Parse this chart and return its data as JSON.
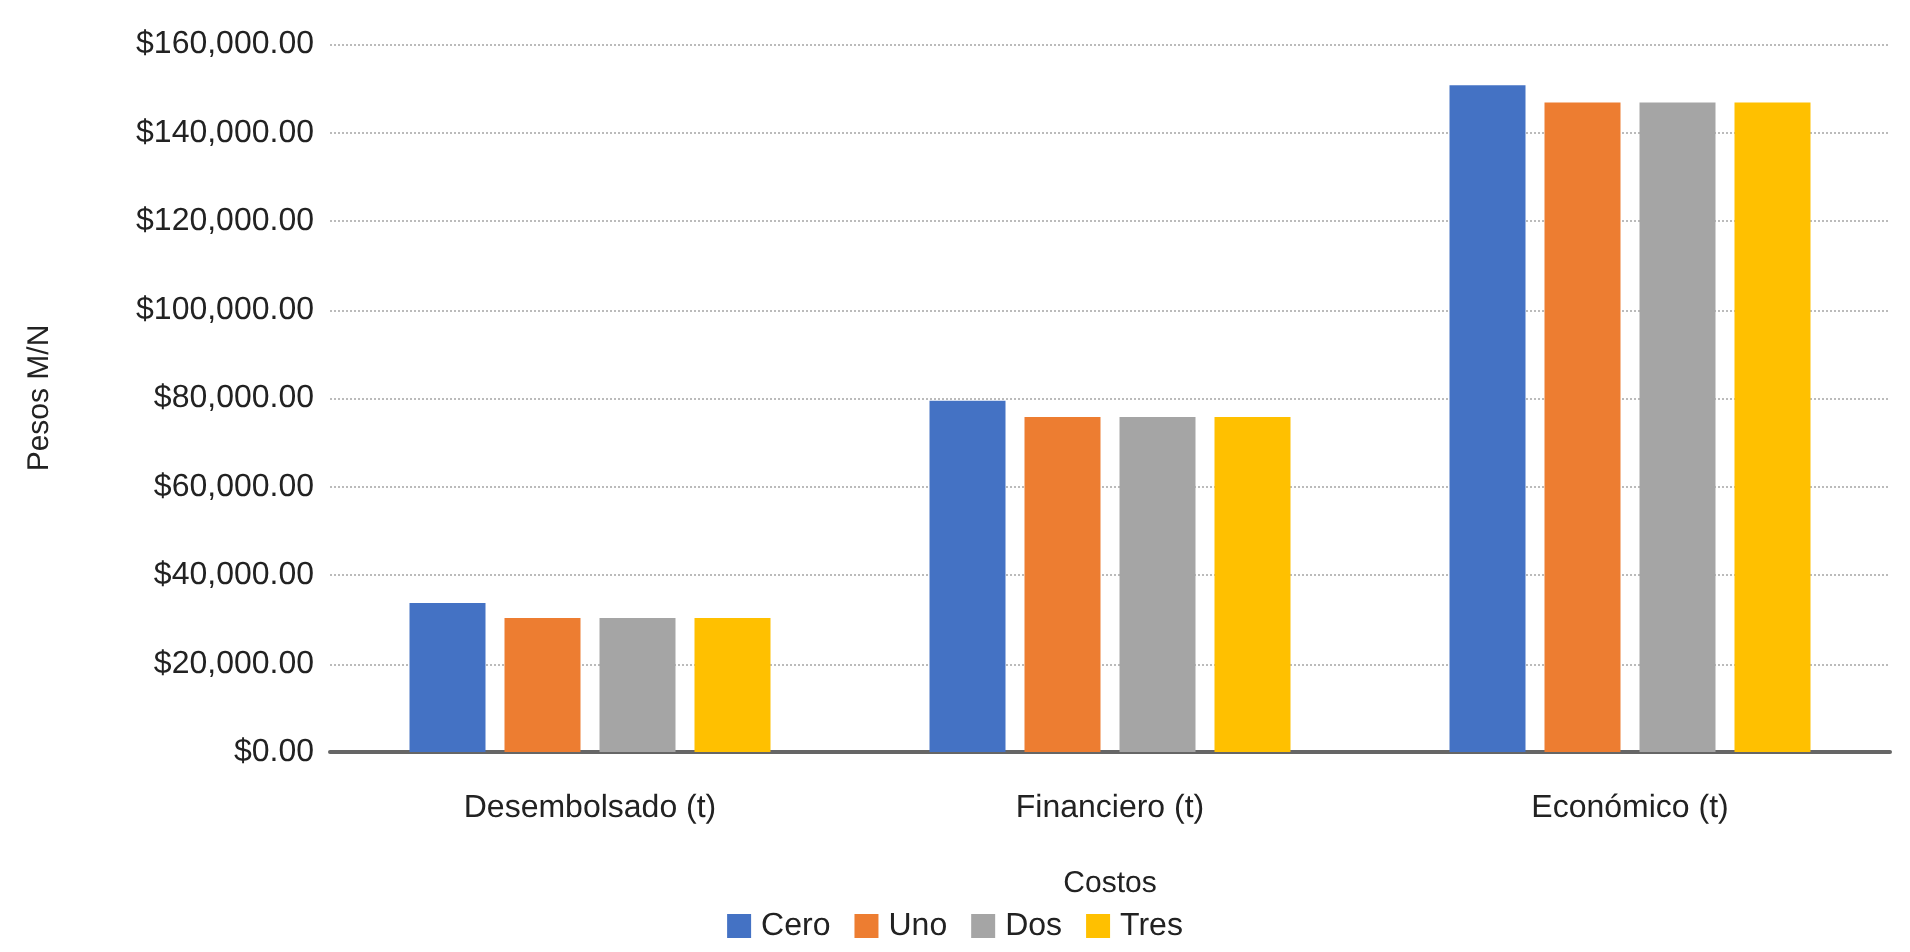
{
  "chart_data": {
    "type": "bar",
    "xlabel": "Costos",
    "ylabel": "Pesos M/N",
    "categories": [
      "Desembolsado (t)",
      "Financiero (t)",
      "Económico (t)"
    ],
    "series": [
      {
        "name": "Cero",
        "color": "#4472c4",
        "values": [
          33700,
          79400,
          150700
        ]
      },
      {
        "name": "Uno",
        "color": "#ed7d31",
        "values": [
          30300,
          75700,
          146800
        ]
      },
      {
        "name": "Dos",
        "color": "#a5a5a5",
        "values": [
          30300,
          75700,
          146800
        ]
      },
      {
        "name": "Tres",
        "color": "#ffc000",
        "values": [
          30300,
          75700,
          146800
        ]
      }
    ],
    "ylim": [
      0,
      160000
    ],
    "yticks": [
      {
        "value": 0,
        "label": "$0.00"
      },
      {
        "value": 20000,
        "label": "$20,000.00"
      },
      {
        "value": 40000,
        "label": "$40,000.00"
      },
      {
        "value": 60000,
        "label": "$60,000.00"
      },
      {
        "value": 80000,
        "label": "$80,000.00"
      },
      {
        "value": 100000,
        "label": "$100,000.00"
      },
      {
        "value": 120000,
        "label": "$120,000.00"
      },
      {
        "value": 140000,
        "label": "$140,000.00"
      },
      {
        "value": 160000,
        "label": "$160,000.00"
      }
    ],
    "grid": "y",
    "legend": "bottom"
  }
}
